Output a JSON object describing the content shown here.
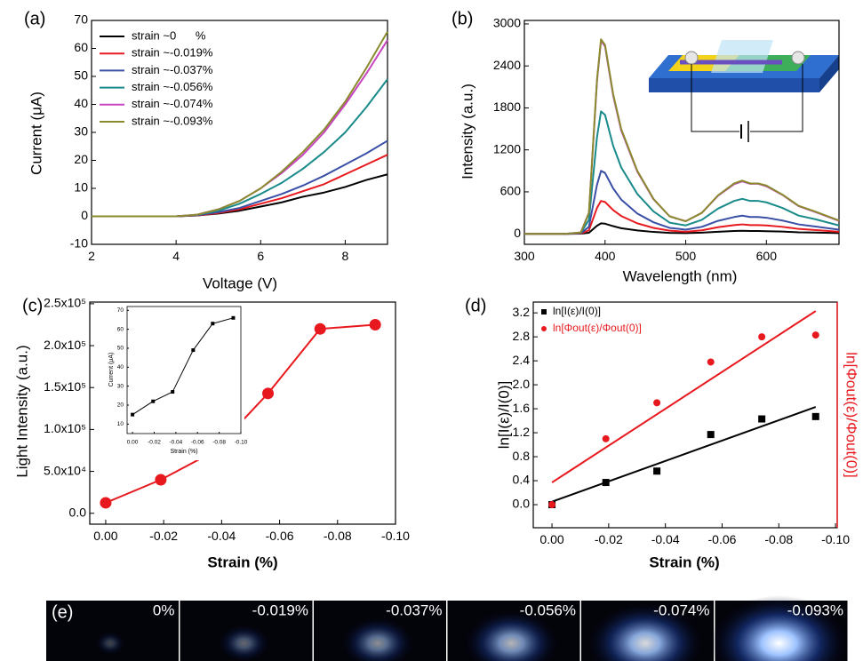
{
  "chart_data": [
    {
      "type": "line",
      "panel_label": "(a)",
      "xlabel": "Voltage (V)",
      "ylabel": "Current (μA)",
      "x": [
        2,
        3,
        4,
        4.5,
        5,
        5.5,
        6,
        6.5,
        7,
        7.5,
        8,
        8.5,
        9
      ],
      "xlim": [
        2,
        9
      ],
      "xticks": [
        2,
        4,
        6,
        8
      ],
      "ylim": [
        -10,
        70
      ],
      "yticks": [
        -10,
        0,
        10,
        20,
        30,
        40,
        50,
        60,
        70
      ],
      "legend": "upper left",
      "series": [
        {
          "name": "strain ~0      %",
          "color": "#000000",
          "values": [
            0,
            0,
            0,
            0.3,
            1,
            2,
            3.5,
            5,
            7,
            8.5,
            10.5,
            13,
            15
          ]
        },
        {
          "name": "strain ~-0.019%",
          "color": "#e8191e",
          "values": [
            0,
            0,
            0,
            0.3,
            1.2,
            2.5,
            4.5,
            6.5,
            9,
            11.5,
            15,
            18.5,
            22
          ]
        },
        {
          "name": "strain ~-0.037%",
          "color": "#3a4fa6",
          "values": [
            0,
            0,
            0,
            0.4,
            1.5,
            3,
            5.5,
            8,
            11,
            14.5,
            18.5,
            22.5,
            27
          ]
        },
        {
          "name": "strain ~-0.056%",
          "color": "#1a8a8a",
          "values": [
            0,
            0,
            0,
            0.5,
            2,
            4.5,
            8,
            12,
            17,
            23,
            30,
            39,
            49
          ]
        },
        {
          "name": "strain ~-0.074%",
          "color": "#c845c0",
          "values": [
            0,
            0,
            0,
            0.6,
            2.5,
            5.5,
            10,
            15.5,
            22,
            30,
            40,
            51,
            63
          ]
        },
        {
          "name": "strain ~-0.093%",
          "color": "#8a8a2e",
          "values": [
            0,
            0,
            0,
            0.6,
            2.5,
            5.5,
            10,
            16,
            23,
            31,
            41,
            53,
            66
          ]
        }
      ]
    },
    {
      "type": "line",
      "panel_label": "(b)",
      "xlabel": "Wavelength (nm)",
      "ylabel": "Intensity (a.u.)",
      "x": [
        300,
        350,
        370,
        380,
        390,
        395,
        400,
        410,
        420,
        440,
        460,
        480,
        500,
        520,
        540,
        560,
        570,
        580,
        590,
        600,
        620,
        640,
        660,
        690
      ],
      "xlim": [
        300,
        690
      ],
      "xticks": [
        300,
        400,
        500,
        600
      ],
      "ylim": [
        -150,
        3050
      ],
      "yticks": [
        0,
        600,
        1200,
        1800,
        2400,
        3000
      ],
      "series": [
        {
          "color": "#000000",
          "values": [
            0,
            0,
            2,
            15,
            115,
            150,
            145,
            110,
            80,
            48,
            27,
            14,
            10,
            17,
            30,
            40,
            43,
            40,
            40,
            38,
            32,
            22,
            18,
            10
          ]
        },
        {
          "color": "#e8191e",
          "values": [
            0,
            0,
            5,
            50,
            370,
            470,
            455,
            340,
            255,
            150,
            85,
            45,
            30,
            50,
            95,
            125,
            135,
            125,
            125,
            120,
            100,
            70,
            55,
            30
          ]
        },
        {
          "color": "#3a4fa6",
          "values": [
            0,
            0,
            10,
            100,
            700,
            900,
            870,
            650,
            490,
            290,
            165,
            85,
            60,
            100,
            185,
            240,
            260,
            240,
            240,
            230,
            190,
            135,
            105,
            60
          ]
        },
        {
          "color": "#1a8a8a",
          "values": [
            0,
            0,
            15,
            200,
            1380,
            1750,
            1700,
            1260,
            950,
            570,
            320,
            160,
            120,
            200,
            360,
            470,
            500,
            470,
            470,
            450,
            370,
            260,
            210,
            120
          ]
        },
        {
          "color": "#c845c0",
          "values": [
            0,
            0,
            20,
            300,
            2180,
            2760,
            2680,
            1980,
            1480,
            890,
            495,
            250,
            180,
            300,
            545,
            710,
            750,
            715,
            715,
            680,
            555,
            395,
            315,
            185
          ]
        },
        {
          "color": "#8a8a2e",
          "values": [
            0,
            0,
            20,
            300,
            2200,
            2780,
            2700,
            2000,
            1500,
            900,
            500,
            250,
            180,
            300,
            550,
            720,
            760,
            720,
            720,
            690,
            560,
            400,
            320,
            190
          ]
        }
      ]
    },
    {
      "type": "line",
      "panel_label": "(c)",
      "xlabel": "Strain (%)",
      "ylabel": "Light Intensity (a.u.)",
      "x": [
        0,
        -0.019,
        -0.037,
        -0.056,
        -0.074,
        -0.093
      ],
      "xlim": [
        0.0055,
        -0.1
      ],
      "xticks": [
        {
          "value": 0,
          "label": "0.00"
        },
        -0.02,
        -0.04,
        -0.06,
        -0.08,
        {
          "value": -0.1,
          "label": "-0.10"
        }
      ],
      "ylim": [
        -13000,
        252000
      ],
      "yticks": [
        {
          "value": 0,
          "label": "0.0"
        },
        {
          "value": 50000,
          "label": "5.0x10⁴"
        },
        {
          "value": 100000,
          "label": "1.0x10⁵"
        },
        {
          "value": 150000,
          "label": "1.5x10⁵"
        },
        {
          "value": 200000,
          "label": "2.0x10⁵"
        },
        {
          "value": 250000,
          "label": "2.5x10⁵"
        }
      ],
      "series": [
        {
          "color": "#e8191e",
          "marker": "circle",
          "values": [
            12500,
            40000,
            73000,
            143000,
            220000,
            225000
          ]
        }
      ],
      "inset": {
        "type": "line",
        "xlabel": "Strain (%)",
        "ylabel": "Current (μA)",
        "x": [
          0,
          -0.019,
          -0.037,
          -0.056,
          -0.074,
          -0.093
        ],
        "xlim": [
          0.005,
          -0.1
        ],
        "xticks": [
          {
            "value": 0,
            "label": "0.00"
          },
          -0.02,
          -0.04,
          -0.06,
          -0.08,
          {
            "value": -0.1,
            "label": "-0.10"
          }
        ],
        "ylim": [
          5,
          72
        ],
        "yticks": [
          10,
          20,
          30,
          40,
          50,
          60,
          70
        ],
        "series": [
          {
            "color": "#000000",
            "marker": "square",
            "values": [
              15,
              22,
              27,
              49,
              63,
              66
            ]
          }
        ]
      }
    },
    {
      "type": "scatter",
      "panel_label": "(d)",
      "xlabel": "Strain (%)",
      "ylabel": "ln[I(ε)/I(0)]",
      "y2label": "ln[Φout(ε)/Φout(0)]",
      "x": [
        0,
        -0.019,
        -0.037,
        -0.056,
        -0.074,
        -0.093
      ],
      "xlim": [
        0.0066,
        -0.1006
      ],
      "xticks": [
        {
          "value": 0,
          "label": "0.00"
        },
        -0.02,
        -0.04,
        -0.06,
        -0.08,
        {
          "value": -0.1,
          "label": "-0.10"
        }
      ],
      "ylim": [
        -0.385,
        3.38
      ],
      "yticks": [
        {
          "value": 0,
          "label": "0.0"
        },
        0.4,
        0.8,
        1.2,
        1.6,
        {
          "value": 2,
          "label": "2.0"
        },
        2.4,
        2.8,
        3.2
      ],
      "y2lim": [
        -0.385,
        3.38
      ],
      "y2color": "#e8191e",
      "legend": "upper left",
      "series": [
        {
          "name": "ln[I(ε)/I(0)]",
          "color": "#000000",
          "marker": "square",
          "values": [
            0,
            0.37,
            0.56,
            1.17,
            1.43,
            1.47
          ],
          "fit": {
            "x": [
              0,
              -0.093
            ],
            "values": [
              0.05,
              1.63
            ]
          }
        },
        {
          "name": "ln[Φout(ε)/Φout(0)]",
          "color": "#e8191e",
          "marker": "circle",
          "axis": "y2",
          "values": [
            0,
            1.1,
            1.7,
            2.38,
            2.8,
            2.83
          ],
          "fit": {
            "x": [
              0,
              -0.093
            ],
            "values": [
              0.37,
              3.23
            ]
          }
        }
      ]
    }
  ],
  "images": {
    "label": "(e)",
    "frames": [
      "0%",
      "-0.019%",
      "-0.037%",
      "-0.056%",
      "-0.074%",
      "-0.093%"
    ]
  }
}
